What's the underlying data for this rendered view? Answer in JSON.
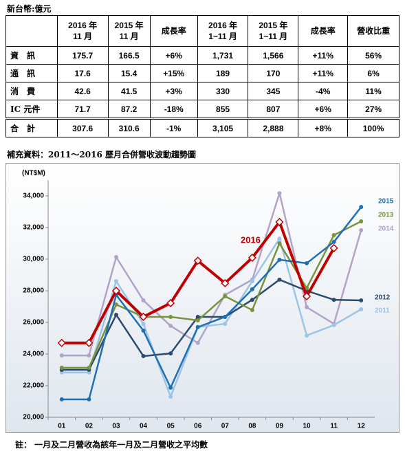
{
  "unit": "新台幣:億元",
  "table": {
    "header": [
      [
        "2016 年",
        "11 月"
      ],
      [
        "2015 年",
        "11 月"
      ],
      [
        "成長率"
      ],
      [
        "2016 年",
        "1~11 月"
      ],
      [
        "2015 年",
        "1~11 月"
      ],
      [
        "成長率"
      ],
      [
        "營收比重"
      ]
    ],
    "rows": [
      [
        "資　訊",
        "175.7",
        "166.5",
        "+6%",
        "1,731",
        "1,566",
        "+11%",
        "56%"
      ],
      [
        "通　訊",
        "17.6",
        "15.4",
        "+15%",
        "189",
        "170",
        "+11%",
        "6%"
      ],
      [
        "消　費",
        "42.6",
        "41.5",
        "+3%",
        "330",
        "345",
        "-4%",
        "11%"
      ],
      [
        "IC 元件",
        "71.7",
        "87.2",
        "-18%",
        "855",
        "807",
        "+6%",
        "27%"
      ],
      [
        "合　計",
        "307.6",
        "310.6",
        "-1%",
        "3,105",
        "2,888",
        "+8%",
        "100%"
      ]
    ]
  },
  "caption": "補充資料：2011～2016 歷月合併營收波動趨勢圖",
  "chart_data": {
    "type": "line",
    "ylabel": "(NT$M)",
    "categories": [
      "01",
      "02",
      "03",
      "04",
      "05",
      "06",
      "07",
      "08",
      "09",
      "10",
      "11",
      "12"
    ],
    "ylim": [
      20000,
      35000
    ],
    "yticks": [
      {
        "value": 20000,
        "label": "20,000"
      },
      {
        "value": 22000,
        "label": "22,000"
      },
      {
        "value": 24000,
        "label": "24,000"
      },
      {
        "value": 26000,
        "label": "26,000"
      },
      {
        "value": 28000,
        "label": "28,000"
      },
      {
        "value": 30000,
        "label": "30,000"
      },
      {
        "value": 32000,
        "label": "32,000"
      },
      {
        "value": 34000,
        "label": "34,000"
      }
    ],
    "series": [
      {
        "name": "2016",
        "color": "#c00000",
        "marker": "diamond",
        "values": [
          24700,
          24700,
          28000,
          26350,
          27220,
          29900,
          28480,
          30090,
          32350,
          27650,
          30700,
          null
        ]
      },
      {
        "name": "2015",
        "color": "#1f6fb4",
        "marker": "circle",
        "values": [
          21130,
          21130,
          27740,
          25480,
          21870,
          25700,
          26350,
          28090,
          29960,
          29740,
          31090,
          33300
        ]
      },
      {
        "name": "2013",
        "color": "#77933c",
        "marker": "circle",
        "values": [
          23130,
          23130,
          27130,
          26350,
          26350,
          26130,
          27650,
          26780,
          31000,
          28170,
          31520,
          32390
        ]
      },
      {
        "name": "2014",
        "color": "#b3a2c7",
        "marker": "circle",
        "values": [
          23910,
          23910,
          30130,
          27390,
          25780,
          24700,
          27740,
          28700,
          34170,
          26960,
          25910,
          31830
        ]
      },
      {
        "name": "2012",
        "color": "#2e4a6b",
        "marker": "circle",
        "values": [
          23000,
          23000,
          26480,
          23870,
          24040,
          26350,
          26350,
          27430,
          28700,
          28000,
          27430,
          27390
        ]
      },
      {
        "name": "2011",
        "color": "#9dc3e6",
        "marker": "circle",
        "values": [
          22830,
          22830,
          28610,
          25910,
          21300,
          25700,
          25910,
          28610,
          31300,
          25170,
          25830,
          26830
        ]
      }
    ]
  },
  "note": "註： 一月及二月營收為該年一月及二月營收之平均數"
}
